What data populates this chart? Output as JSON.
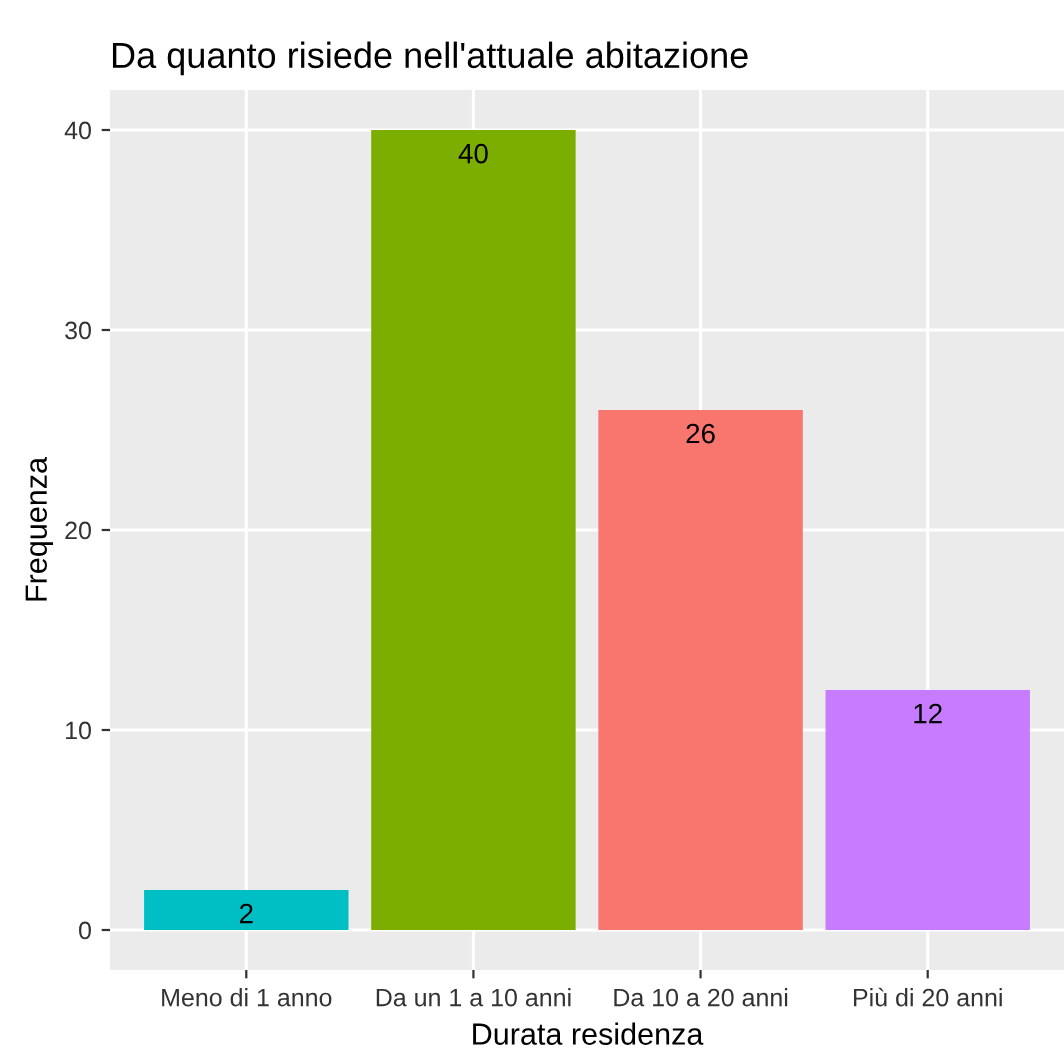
{
  "chart_data": {
    "type": "bar",
    "title": "Da quanto risiede nell'attuale abitazione",
    "xlabel": "Durata residenza",
    "ylabel": "Frequenza",
    "categories": [
      "Meno di 1 anno",
      "Da un 1 a 10 anni",
      "Da 10 a 20 anni",
      "Più di 20 anni"
    ],
    "values": [
      2,
      40,
      26,
      12
    ],
    "colors": [
      "#00bfc4",
      "#7cae00",
      "#f8766d",
      "#c77cff"
    ],
    "ylim": [
      -2,
      42
    ],
    "yticks": [
      0,
      10,
      20,
      30,
      40
    ],
    "grid": true,
    "data_labels": true,
    "legend": false
  }
}
